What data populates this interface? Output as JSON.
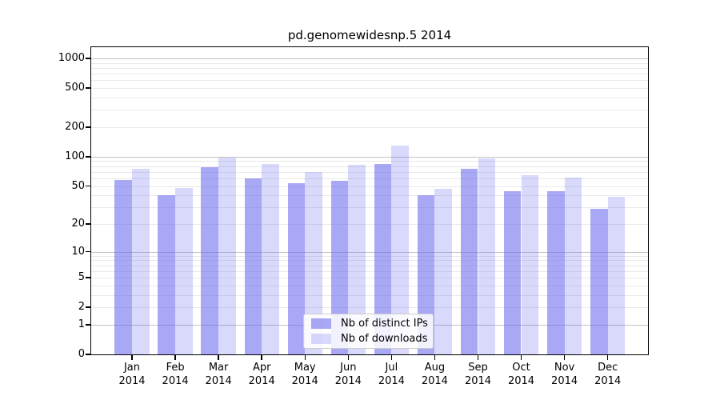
{
  "chart_data": {
    "type": "bar",
    "title": "pd.genomewidesnp.5 2014",
    "categories": [
      "Jan",
      "Feb",
      "Mar",
      "Apr",
      "May",
      "Jun",
      "Jul",
      "Aug",
      "Sep",
      "Oct",
      "Nov",
      "Dec"
    ],
    "category_year": "2014",
    "series": [
      {
        "name": "Nb of distinct IPs",
        "color": "rgba(102,102,238,0.57)",
        "values": [
          58,
          40,
          78,
          60,
          53,
          57,
          84,
          40,
          75,
          44,
          44,
          29
        ]
      },
      {
        "name": "Nb of downloads",
        "color": "rgba(102,102,238,0.25)",
        "values": [
          75,
          48,
          98,
          84,
          70,
          82,
          130,
          47,
          97,
          65,
          61,
          39
        ]
      }
    ],
    "xlabel": "",
    "ylabel": "",
    "ylim": [
      0,
      1300
    ],
    "y_axis": {
      "scale": "log1p",
      "tick_labels": [
        "1000",
        "500",
        "200",
        "100",
        "50",
        "20",
        "10",
        "5",
        "2",
        "1",
        "0"
      ],
      "tick_values": [
        1000,
        500,
        200,
        100,
        50,
        20,
        10,
        5,
        2,
        1,
        0
      ],
      "major_gridlines": [
        1,
        10,
        100,
        1000
      ],
      "minor_gridlines": [
        2,
        3,
        4,
        5,
        6,
        7,
        8,
        9,
        20,
        30,
        40,
        50,
        60,
        70,
        80,
        90,
        200,
        300,
        400,
        500,
        600,
        700,
        800,
        900
      ]
    },
    "grid": true,
    "legend": {
      "position": "lower center",
      "entries": [
        "Nb of distinct IPs",
        "Nb of downloads"
      ]
    }
  },
  "colors": {
    "bar_base": "#6666ee",
    "major_grid": "#c2c2c2",
    "minor_grid": "#e9e9e9",
    "axis": "#000000",
    "background": "#ffffff"
  }
}
